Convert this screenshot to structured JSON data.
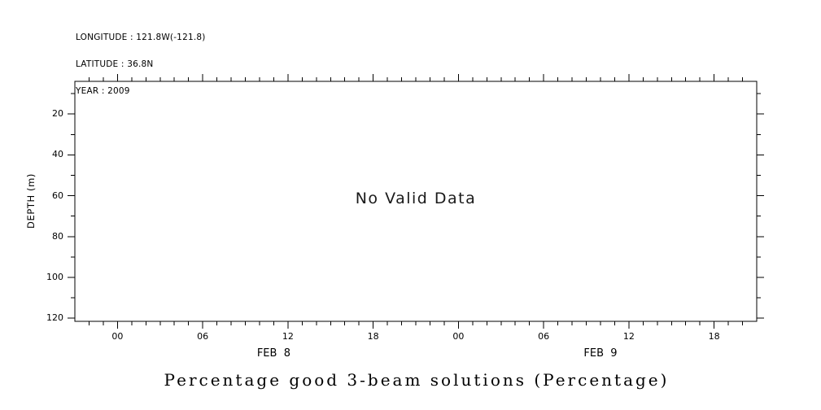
{
  "header": {
    "lines": [
      "LONGITUDE : 121.8W(-121.8)",
      "LATITUDE : 36.8N",
      "YEAR : 2009"
    ]
  },
  "chart_data": {
    "type": "heatmap",
    "title": "Percentage good 3-beam solutions (Percentage)",
    "no_data_text": "No Valid Data",
    "ylabel": "DEPTH (m)",
    "xlabel": "",
    "grid": false,
    "y_axis": {
      "min": 4,
      "max": 121.5,
      "direction": "down",
      "major_ticks": [
        20,
        40,
        60,
        80,
        100,
        120
      ],
      "minor_step": 10
    },
    "x_axis": {
      "range_hours": [
        0,
        48
      ],
      "major_tick_hours": [
        3,
        9,
        15,
        21,
        27,
        33,
        39,
        45
      ],
      "major_tick_labels": [
        "00",
        "06",
        "12",
        "18",
        "00",
        "06",
        "12",
        "18"
      ],
      "minor_step_hours": 1,
      "day_labels": [
        {
          "label": "FEB  8",
          "center_hour": 14
        },
        {
          "label": "FEB  9",
          "center_hour": 37
        }
      ]
    },
    "series": []
  },
  "colors": {
    "background": "#ffffff",
    "axis": "#000000",
    "text": "#000000"
  }
}
